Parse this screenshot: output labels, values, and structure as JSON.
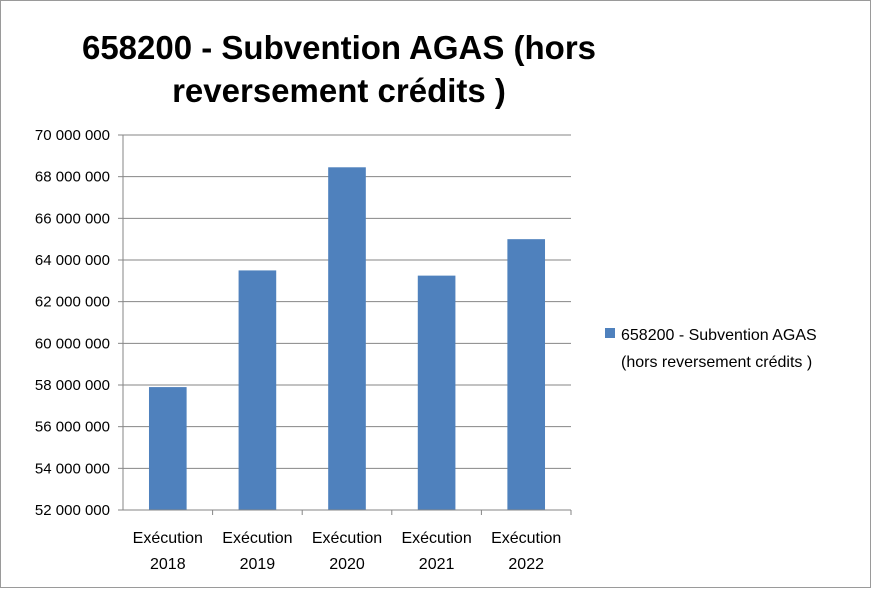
{
  "chart_data": {
    "type": "bar",
    "title_lines": [
      "658200 - Subvention AGAS (hors",
      "reversement crédits )"
    ],
    "categories": [
      [
        "Exécution",
        "2018"
      ],
      [
        "Exécution",
        "2019"
      ],
      [
        "Exécution",
        "2020"
      ],
      [
        "Exécution",
        "2021"
      ],
      [
        "Exécution",
        "2022"
      ]
    ],
    "series": [
      {
        "name": "658200 - Subvention AGAS (hors reversement crédits )",
        "legend_lines": [
          "658200 - Subvention AGAS",
          "(hors reversement crédits )"
        ],
        "color": "#4f81bd",
        "values": [
          57900000,
          63500000,
          68450000,
          63250000,
          65000000
        ]
      }
    ],
    "ylim": [
      52000000,
      70000000
    ],
    "y_ticks": [
      {
        "value": 52000000,
        "label": "52 000 000"
      },
      {
        "value": 54000000,
        "label": "54 000 000"
      },
      {
        "value": 56000000,
        "label": "56 000 000"
      },
      {
        "value": 58000000,
        "label": "58 000 000"
      },
      {
        "value": 60000000,
        "label": "60 000 000"
      },
      {
        "value": 62000000,
        "label": "62 000 000"
      },
      {
        "value": 64000000,
        "label": "64 000 000"
      },
      {
        "value": 66000000,
        "label": "66 000 000"
      },
      {
        "value": 68000000,
        "label": "68 000 000"
      },
      {
        "value": 70000000,
        "label": "70 000 000"
      }
    ],
    "grid": true,
    "legend_position": "right",
    "gridline_color": "#868686",
    "axis_color": "#868686"
  }
}
